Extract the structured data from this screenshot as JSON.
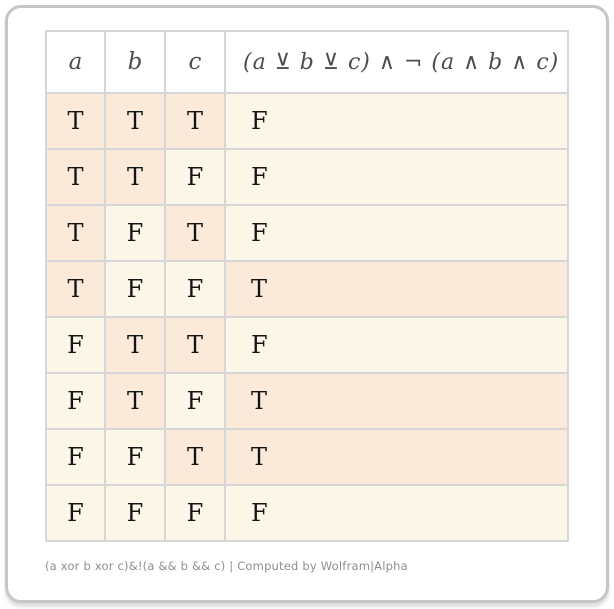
{
  "table": {
    "headers": [
      "a",
      "b",
      "c",
      "(a ⊻ b ⊻ c) ∧ ¬ (a ∧ b ∧ c)"
    ],
    "rows": [
      [
        "T",
        "T",
        "T",
        "F"
      ],
      [
        "T",
        "T",
        "F",
        "F"
      ],
      [
        "T",
        "F",
        "T",
        "F"
      ],
      [
        "T",
        "F",
        "F",
        "T"
      ],
      [
        "F",
        "T",
        "T",
        "F"
      ],
      [
        "F",
        "T",
        "F",
        "T"
      ],
      [
        "F",
        "F",
        "T",
        "T"
      ],
      [
        "F",
        "F",
        "F",
        "F"
      ]
    ]
  },
  "footer": {
    "text": "(a xor b xor c)&!(a && b && c) | Computed by Wolfram|Alpha"
  },
  "colors": {
    "true_cell_bg": "#fbead9",
    "false_cell_bg": "#fcf6e9",
    "grid_line": "#d6d6d6",
    "header_text": "#4d4d4d",
    "value_text": "#141414",
    "footer_text": "#8f8f8f",
    "card_border": "#c6c6c6"
  }
}
